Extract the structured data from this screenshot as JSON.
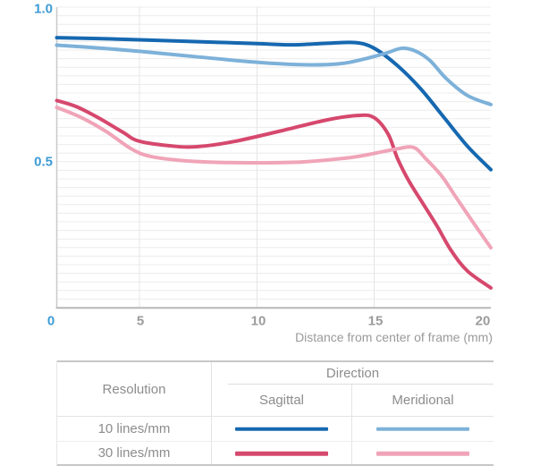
{
  "chart_data": {
    "type": "line",
    "title": "",
    "xlabel": "Distance from center of frame (mm)",
    "ylabel": "",
    "xlim": [
      0,
      20
    ],
    "ylim": [
      0,
      1.0
    ],
    "x_tick_labels": [
      "0",
      "5",
      "10",
      "15",
      "20"
    ],
    "y_tick_labels": [
      "1.0",
      "0.5"
    ],
    "grid": "fine horizontal minor gridlines; vertical gridlines at x ticks 5/10/15",
    "legend_position": "table below chart",
    "accent_label_color": "#3d9bd5",
    "gray_label_color": "#9b9b9b",
    "series": [
      {
        "id": "10-sagittal",
        "name": "10 lines/mm Sagittal",
        "color": "#1668b0",
        "points": [
          [
            0,
            0.902
          ],
          [
            2.5,
            0.899
          ],
          [
            5,
            0.895
          ],
          [
            7.5,
            0.889
          ],
          [
            10,
            0.883
          ],
          [
            11.5,
            0.879
          ],
          [
            13,
            0.884
          ],
          [
            14.2,
            0.886
          ],
          [
            15,
            0.868
          ],
          [
            16,
            0.812
          ],
          [
            17,
            0.737
          ],
          [
            18,
            0.645
          ],
          [
            19,
            0.553
          ],
          [
            20,
            0.478
          ]
        ]
      },
      {
        "id": "10-meridional",
        "name": "10 lines/mm Meridional",
        "color": "#7db1d9",
        "points": [
          [
            0,
            0.878
          ],
          [
            2.5,
            0.869
          ],
          [
            5,
            0.858
          ],
          [
            7.5,
            0.84
          ],
          [
            10,
            0.823
          ],
          [
            12,
            0.815
          ],
          [
            13.5,
            0.818
          ],
          [
            14.5,
            0.832
          ],
          [
            15.5,
            0.852
          ],
          [
            16.2,
            0.868
          ],
          [
            16.8,
            0.858
          ],
          [
            17.4,
            0.828
          ],
          [
            18.1,
            0.77
          ],
          [
            19,
            0.716
          ],
          [
            20,
            0.687
          ]
        ]
      },
      {
        "id": "30-sagittal",
        "name": "30 lines/mm Sagittal",
        "color": "#d6486d",
        "points": [
          [
            0,
            0.7
          ],
          [
            1.2,
            0.68
          ],
          [
            2.5,
            0.645
          ],
          [
            4,
            0.598
          ],
          [
            5,
            0.569
          ],
          [
            6.5,
            0.553
          ],
          [
            7.5,
            0.552
          ],
          [
            9,
            0.568
          ],
          [
            11,
            0.602
          ],
          [
            13,
            0.638
          ],
          [
            14.3,
            0.652
          ],
          [
            15,
            0.645
          ],
          [
            15.6,
            0.592
          ],
          [
            16,
            0.514
          ],
          [
            16.5,
            0.44
          ],
          [
            17.1,
            0.368
          ],
          [
            17.7,
            0.296
          ],
          [
            18.3,
            0.218
          ],
          [
            19,
            0.152
          ],
          [
            20,
            0.098
          ]
        ]
      },
      {
        "id": "30-meridional",
        "name": "30 lines/mm Meridional",
        "color": "#f0a4b8",
        "points": [
          [
            0,
            0.678
          ],
          [
            1.5,
            0.645
          ],
          [
            3,
            0.6
          ],
          [
            4.5,
            0.545
          ],
          [
            5.5,
            0.52
          ],
          [
            7,
            0.506
          ],
          [
            8.5,
            0.501
          ],
          [
            10,
            0.5
          ],
          [
            12,
            0.503
          ],
          [
            14,
            0.517
          ],
          [
            15,
            0.53
          ],
          [
            16,
            0.545
          ],
          [
            16.7,
            0.549
          ],
          [
            17.2,
            0.514
          ],
          [
            17.9,
            0.457
          ],
          [
            18.5,
            0.39
          ],
          [
            19.2,
            0.313
          ],
          [
            20,
            0.227
          ]
        ]
      }
    ]
  },
  "table": {
    "resolution_header": "Resolution",
    "direction_header": "Direction",
    "direction_columns": [
      "Sagittal",
      "Meridional"
    ],
    "rows": [
      {
        "resolution": "10 lines/mm",
        "sagittal_series": 0,
        "meridional_series": 1
      },
      {
        "resolution": "30 lines/mm",
        "sagittal_series": 2,
        "meridional_series": 3
      }
    ]
  }
}
